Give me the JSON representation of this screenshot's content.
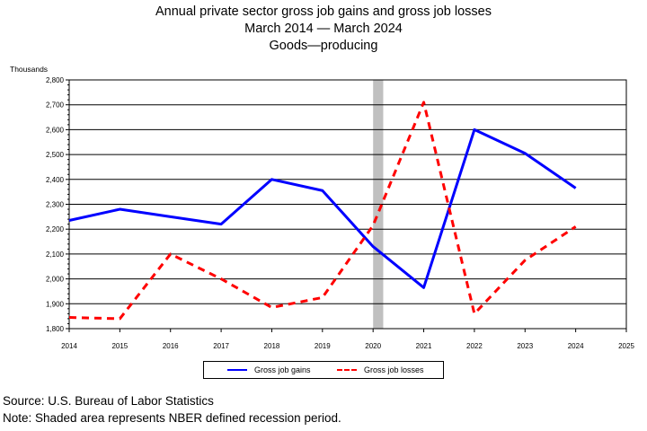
{
  "title_lines": [
    "Annual private sector gross job gains and gross job losses",
    "March 2014 — March 2024",
    "Goods—producing"
  ],
  "unit_label": "Thousands",
  "footer": {
    "source": "Source: U.S. Bureau of Labor Statistics",
    "note": "Note: Shaded area represents NBER defined recession period."
  },
  "chart_data": {
    "type": "line",
    "x": [
      2014,
      2015,
      2016,
      2017,
      2018,
      2019,
      2020,
      2021,
      2022,
      2023,
      2024
    ],
    "xlim": [
      2014,
      2025
    ],
    "x_ticks": [
      "2014",
      "2015",
      "2016",
      "2017",
      "2018",
      "2019",
      "2020",
      "2021",
      "2022",
      "2023",
      "2024",
      "2025"
    ],
    "ylim": [
      1800,
      2800
    ],
    "y_ticks": [
      "1,800",
      "1,900",
      "2,000",
      "2,100",
      "2,200",
      "2,300",
      "2,400",
      "2,500",
      "2,600",
      "2,700",
      "2,800"
    ],
    "grid": "horizontal",
    "recession_shading": [
      2020,
      2020.2
    ],
    "legend_position": "bottom",
    "series": [
      {
        "name": "Gross job gains",
        "color": "#0000ff",
        "style": "solid",
        "values": [
          2235,
          2280,
          2250,
          2220,
          2400,
          2355,
          2130,
          1965,
          2600,
          2505,
          2365
        ]
      },
      {
        "name": "Gross job losses",
        "color": "#ff0000",
        "style": "dashed",
        "values": [
          1845,
          1840,
          2100,
          2000,
          1885,
          1925,
          2215,
          2710,
          1860,
          2075,
          2210
        ]
      }
    ]
  }
}
